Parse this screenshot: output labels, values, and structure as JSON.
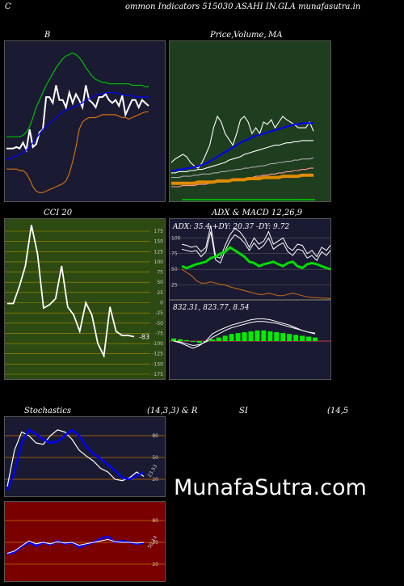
{
  "header": {
    "left_char": "C",
    "title": "ommon  Indicators 515030  ASAHI IN.GLA munafasutra.in"
  },
  "colors": {
    "bg": "#000000",
    "panel_dark": "#1a1a33",
    "panel_green": "#1f3d1f",
    "cci_bg": "#2d4a12",
    "rsi_bg": "#7a0000",
    "blue": "#0000ff",
    "green": "#00c000",
    "orange": "#d07010",
    "white": "#ffffff"
  },
  "watermark": "MunafaSutra.com",
  "chart_data": [
    {
      "id": "bollinger",
      "type": "line",
      "title": "B",
      "x": [
        1,
        2,
        3,
        4,
        5,
        6,
        7,
        8,
        9,
        10,
        11,
        12,
        13,
        14,
        15,
        16,
        17,
        18,
        19,
        20,
        21,
        22,
        23,
        24,
        25,
        26,
        27,
        28,
        29,
        30,
        31,
        32,
        33,
        34,
        35,
        36,
        37,
        38,
        39,
        40,
        41,
        42,
        43,
        44
      ],
      "series": [
        {
          "role": "price",
          "color": "#ffffff",
          "values": [
            183,
            183,
            183,
            182,
            183,
            179,
            184,
            170,
            182,
            180,
            172,
            170,
            148,
            148,
            152,
            140,
            150,
            150,
            155,
            145,
            152,
            146,
            150,
            155,
            140,
            150,
            152,
            155,
            148,
            148,
            146,
            150,
            152,
            150,
            154,
            147,
            160,
            155,
            150,
            150,
            155,
            150,
            152,
            154
          ]
        },
        {
          "role": "upper",
          "color": "#00c000",
          "values": [
            175,
            175,
            175,
            175,
            175,
            174,
            172,
            168,
            162,
            155,
            150,
            145,
            140,
            136,
            132,
            128,
            125,
            122,
            120,
            119,
            118,
            119,
            121,
            124,
            128,
            131,
            134,
            136,
            137,
            138,
            138,
            139,
            139,
            139,
            139,
            139,
            139,
            139,
            140,
            140,
            140,
            140,
            141,
            141
          ]
        },
        {
          "role": "middle",
          "color": "#0000ff",
          "values": [
            190,
            190,
            189,
            188,
            187,
            186,
            184,
            182,
            179,
            176,
            173,
            170,
            168,
            166,
            164,
            162,
            160,
            158,
            157,
            156,
            155,
            154,
            153,
            152,
            150,
            149,
            148,
            147,
            146,
            146,
            145,
            145,
            145,
            145,
            146,
            146,
            147,
            147,
            147,
            148,
            148,
            148,
            148,
            148
          ]
        },
        {
          "role": "lower",
          "color": "#d07010",
          "values": [
            197,
            197,
            197,
            197,
            198,
            198,
            200,
            204,
            209,
            212,
            213,
            213,
            212,
            211,
            210,
            209,
            208,
            207,
            205,
            200,
            192,
            182,
            170,
            165,
            163,
            162,
            162,
            162,
            161,
            160,
            160,
            160,
            160,
            160,
            161,
            162,
            162,
            163,
            162,
            161,
            160,
            159,
            158,
            158
          ]
        }
      ]
    },
    {
      "id": "price_ma",
      "type": "line",
      "title_a": "Price,",
      "title_b": "Volume,",
      "title_c": "MA",
      "series": [
        {
          "role": "price",
          "color": "#ffffff",
          "values": [
            165,
            162,
            160,
            158,
            160,
            165,
            168,
            170,
            165,
            158,
            150,
            135,
            125,
            130,
            140,
            145,
            150,
            140,
            128,
            125,
            130,
            140,
            135,
            140,
            130,
            132,
            128,
            135,
            130,
            125,
            128,
            130,
            132,
            135,
            135,
            135,
            130,
            138
          ]
        },
        {
          "role": "ma_blue",
          "color": "#0000ff",
          "values": [
            172,
            172,
            171,
            171,
            170,
            170,
            169,
            168,
            167,
            166,
            164,
            162,
            160,
            158,
            156,
            154,
            152,
            150,
            148,
            146,
            145,
            143,
            142,
            141,
            140,
            139,
            138,
            137,
            136,
            135,
            134,
            133,
            132,
            132,
            131,
            131,
            131,
            131
          ]
        },
        {
          "role": "ma_white_1",
          "color": "#ffffff",
          "values": [
            174,
            174,
            173,
            173,
            173,
            172,
            172,
            171,
            171,
            170,
            169,
            168,
            167,
            166,
            165,
            163,
            162,
            161,
            160,
            158,
            157,
            156,
            155,
            154,
            153,
            152,
            151,
            150,
            150,
            149,
            148,
            148,
            147,
            147,
            146,
            146,
            146,
            146
          ]
        },
        {
          "role": "ma_grey",
          "color": "#aaaaaa",
          "values": [
            178,
            178,
            178,
            177,
            177,
            177,
            176,
            176,
            175,
            175,
            175,
            174,
            174,
            173,
            173,
            172,
            172,
            171,
            171,
            170,
            170,
            169,
            169,
            168,
            168,
            167,
            166,
            166,
            165,
            165,
            164,
            164,
            163,
            163,
            162,
            162,
            162,
            161
          ]
        },
        {
          "role": "ma_pink",
          "color": "#ff9999",
          "values": [
            186,
            186,
            186,
            185,
            185,
            185,
            185,
            184,
            184,
            184,
            183,
            183,
            182,
            182,
            181,
            181,
            180,
            180,
            179,
            179,
            178,
            178,
            177,
            177,
            176,
            176,
            175,
            175,
            174,
            174,
            173,
            173,
            172,
            172,
            171,
            171,
            170,
            170
          ]
        },
        {
          "role": "ma_orange",
          "color": "#e08a00",
          "values": [
            183,
            183,
            183,
            183,
            183,
            183,
            183,
            182,
            182,
            182,
            182,
            182,
            181,
            181,
            181,
            181,
            180,
            180,
            180,
            180,
            179,
            179,
            179,
            179,
            178,
            178,
            178,
            178,
            178,
            177,
            177,
            177,
            177,
            177,
            176,
            176,
            176,
            176
          ]
        }
      ]
    },
    {
      "id": "cci",
      "type": "line",
      "title": "CCI 20",
      "yticks": [
        "175",
        "150",
        "125",
        "100",
        "75",
        "50",
        "25",
        "0",
        "-25",
        "-50",
        "-75",
        "-100",
        "-125",
        "-150",
        "-175"
      ],
      "ylim": [
        -175,
        175
      ],
      "last_label": "-83",
      "values": [
        -2,
        -2,
        40,
        90,
        190,
        120,
        -13,
        -5,
        10,
        90,
        -10,
        -30,
        -70,
        0,
        -30,
        -100,
        -130,
        -10,
        -70,
        -80,
        -80,
        -83
      ]
    },
    {
      "id": "adx",
      "type": "line",
      "title": "ADX  & MACD 12,26,9",
      "text": "ADX: 35.4   +DY: 20.37 -DY: 9.72",
      "yticks": [
        "100",
        "75",
        "50",
        "25"
      ],
      "ylim": [
        0,
        130
      ],
      "series": [
        {
          "role": "plus_dy",
          "color": "#ffffff",
          "values": [
            90,
            88,
            85,
            87,
            78,
            85,
            120,
            70,
            68,
            88,
            105,
            115,
            110,
            100,
            85,
            100,
            90,
            95,
            110,
            90,
            95,
            100,
            85,
            80,
            90,
            88,
            75,
            80,
            70,
            85,
            80,
            90
          ]
        },
        {
          "role": "minus_dy",
          "color": "#ffffff",
          "values": [
            82,
            80,
            78,
            80,
            70,
            78,
            110,
            65,
            60,
            80,
            95,
            105,
            100,
            92,
            80,
            92,
            82,
            88,
            100,
            82,
            88,
            92,
            78,
            72,
            82,
            80,
            68,
            72,
            64,
            78,
            72,
            82
          ]
        },
        {
          "role": "adx",
          "color": "#00dd00",
          "values": [
            55,
            52,
            55,
            58,
            60,
            62,
            68,
            70,
            75,
            78,
            85,
            80,
            75,
            70,
            62,
            60,
            55,
            58,
            60,
            62,
            58,
            55,
            60,
            62,
            55,
            52,
            58,
            60,
            58,
            55,
            52,
            50
          ]
        },
        {
          "role": "orange",
          "color": "#d07010",
          "values": [
            50,
            45,
            40,
            32,
            28,
            28,
            30,
            28,
            26,
            25,
            22,
            20,
            18,
            16,
            14,
            12,
            10,
            10,
            12,
            10,
            8,
            8,
            10,
            12,
            10,
            8,
            6,
            5,
            5,
            4,
            4,
            3
          ]
        }
      ]
    },
    {
      "id": "macd",
      "type": "line",
      "text": "832.31,  823.77,  8.54",
      "series": [
        {
          "role": "macd",
          "color": "#ffffff",
          "values": [
            0,
            -2,
            -5,
            -8,
            -5,
            0,
            8,
            12,
            15,
            18,
            20,
            22,
            24,
            25,
            25,
            24,
            22,
            20,
            18,
            15,
            12,
            10,
            8
          ]
        },
        {
          "role": "signal",
          "color": "#ffffff",
          "values": [
            0,
            -1,
            -3,
            -5,
            -4,
            -1,
            4,
            8,
            12,
            15,
            17,
            19,
            21,
            22,
            22,
            21,
            20,
            18,
            16,
            14,
            12,
            10,
            9
          ]
        }
      ],
      "histogram": [
        3,
        2,
        1,
        -1,
        -2,
        -1,
        2,
        4,
        6,
        8,
        9,
        10,
        11,
        12,
        12,
        11,
        10,
        9,
        8,
        7,
        6,
        5,
        4
      ]
    },
    {
      "id": "stochastics",
      "type": "line",
      "title_left": "Stochastics",
      "title_mid": "(14,3,3) & R",
      "yticks": [
        "80",
        "50",
        "20"
      ],
      "ylim": [
        0,
        100
      ],
      "last_label": "23.53",
      "series": [
        {
          "role": "k",
          "color": "#ffffff",
          "values": [
            10,
            60,
            85,
            80,
            70,
            68,
            80,
            88,
            85,
            75,
            60,
            52,
            45,
            35,
            30,
            20,
            18,
            22,
            30,
            24
          ]
        },
        {
          "role": "d",
          "color": "#0000ff",
          "values": [
            5,
            30,
            70,
            88,
            82,
            75,
            70,
            72,
            80,
            88,
            80,
            65,
            55,
            48,
            40,
            32,
            22,
            20,
            25,
            30
          ]
        }
      ]
    },
    {
      "id": "rsi",
      "type": "line",
      "title_left": "SI",
      "title_right": "(14,5",
      "yticks": [
        "80",
        "50",
        "20"
      ],
      "ylim": [
        0,
        100
      ],
      "last_label": "50.14",
      "series": [
        {
          "role": "rsi",
          "color": "#0000ff",
          "values": [
            34,
            36,
            44,
            50,
            45,
            50,
            47,
            52,
            48,
            50,
            43,
            47,
            50,
            55,
            58,
            50,
            52,
            50,
            48,
            49
          ]
        },
        {
          "role": "rsi_white",
          "color": "#ffffff",
          "values": [
            35,
            38,
            45,
            52,
            48,
            50,
            48,
            51,
            49,
            50,
            46,
            48,
            50,
            52,
            54,
            51,
            50,
            50,
            49,
            50
          ]
        }
      ]
    }
  ]
}
